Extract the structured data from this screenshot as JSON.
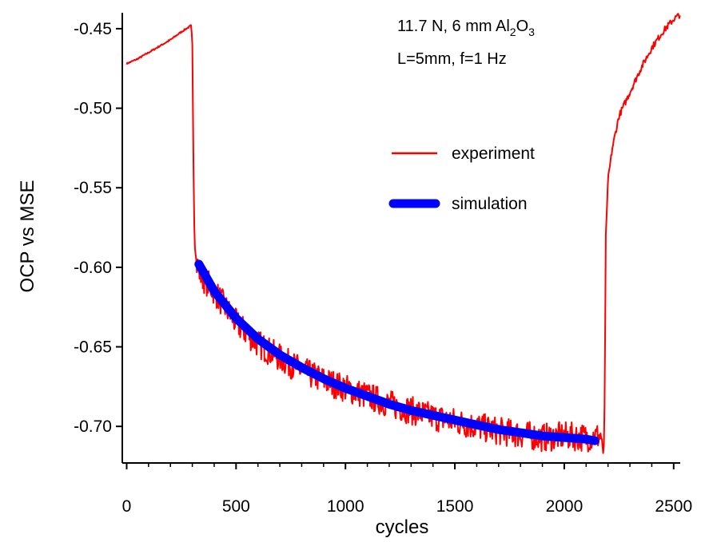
{
  "chart_data": {
    "type": "line",
    "title": "",
    "xlabel": "cycles",
    "ylabel": "OCP  vs MSE",
    "xlim": [
      -20,
      2530
    ],
    "ylim": [
      -0.723,
      -0.44
    ],
    "xticks": [
      0,
      500,
      1000,
      1500,
      2000,
      2500
    ],
    "xtick_labels": [
      "0",
      "500",
      "1000",
      "1500",
      "2000",
      "2500"
    ],
    "yticks": [
      -0.45,
      -0.5,
      -0.55,
      -0.6,
      -0.65,
      -0.7
    ],
    "ytick_labels": [
      "-0.45",
      "-0.50",
      "-0.55",
      "-0.60",
      "-0.65",
      "-0.70"
    ],
    "grid": false,
    "legend_position": "right",
    "annotations": {
      "line1_prefix": "11.7 N,  6 mm Al",
      "line1_sub1": "2",
      "line1_mid": "O",
      "line1_sub2": "3",
      "line2": "L=5mm,  f=1 Hz"
    },
    "series": [
      {
        "name": "experiment",
        "color": "#ff0000",
        "x": [
          0,
          50,
          100,
          150,
          200,
          250,
          295,
          300,
          305,
          310,
          320,
          340,
          400,
          500,
          600,
          700,
          800,
          900,
          1000,
          1100,
          1200,
          1300,
          1400,
          1500,
          1600,
          1700,
          1800,
          1900,
          2000,
          2100,
          2170,
          2180,
          2185,
          2190,
          2200,
          2220,
          2250,
          2300,
          2350,
          2400,
          2450,
          2500,
          2530
        ],
        "y": [
          -0.472,
          -0.469,
          -0.465,
          -0.461,
          -0.457,
          -0.452,
          -0.448,
          -0.46,
          -0.53,
          -0.585,
          -0.598,
          -0.605,
          -0.615,
          -0.635,
          -0.648,
          -0.657,
          -0.665,
          -0.671,
          -0.676,
          -0.681,
          -0.686,
          -0.69,
          -0.694,
          -0.697,
          -0.7,
          -0.703,
          -0.705,
          -0.707,
          -0.706,
          -0.707,
          -0.706,
          -0.72,
          -0.68,
          -0.58,
          -0.545,
          -0.525,
          -0.505,
          -0.49,
          -0.475,
          -0.462,
          -0.452,
          -0.444,
          -0.441
        ]
      },
      {
        "name": "simulation",
        "color": "#0000ff",
        "x": [
          330,
          400,
          500,
          600,
          700,
          800,
          900,
          1000,
          1100,
          1200,
          1300,
          1400,
          1500,
          1600,
          1700,
          1800,
          1900,
          2000,
          2100,
          2140
        ],
        "y": [
          -0.598,
          -0.615,
          -0.632,
          -0.645,
          -0.655,
          -0.663,
          -0.67,
          -0.676,
          -0.681,
          -0.686,
          -0.69,
          -0.693,
          -0.696,
          -0.699,
          -0.702,
          -0.704,
          -0.706,
          -0.707,
          -0.708,
          -0.709
        ]
      }
    ]
  }
}
